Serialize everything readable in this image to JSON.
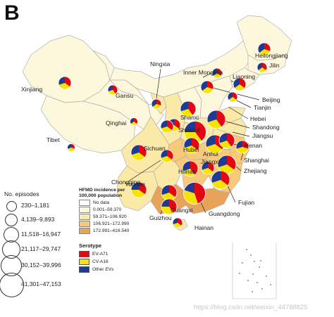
{
  "panel_label": "B",
  "colors": {
    "nodata": "#ffffff",
    "c1": "#fdf7dc",
    "c2": "#fbe9a8",
    "c3": "#f7c979",
    "c4": "#e8a35a",
    "ev71": "#e30613",
    "cva16": "#f6e400",
    "other": "#1f3a93"
  },
  "provinces": [
    {
      "name": "Xinjiang",
      "cls": "c1"
    },
    {
      "name": "Tibet",
      "cls": "c1"
    },
    {
      "name": "Qinghai",
      "cls": "c1"
    },
    {
      "name": "Gansu",
      "cls": "c1"
    },
    {
      "name": "Inner Mongolia",
      "cls": "c1"
    },
    {
      "name": "Heilongjiang",
      "cls": "c1"
    },
    {
      "name": "Jilin",
      "cls": "c1"
    },
    {
      "name": "Liaoning",
      "cls": "c1"
    },
    {
      "name": "Ningxia",
      "cls": "c2"
    },
    {
      "name": "Shaanxi",
      "cls": "c2"
    },
    {
      "name": "Shanxi",
      "cls": "c1"
    },
    {
      "name": "Hebei",
      "cls": "c1"
    },
    {
      "name": "Shandong",
      "cls": "c2"
    },
    {
      "name": "Henan",
      "cls": "c2"
    },
    {
      "name": "Sichuan",
      "cls": "c2"
    },
    {
      "name": "Chongqing",
      "cls": "c3"
    },
    {
      "name": "Hubei",
      "cls": "c3"
    },
    {
      "name": "Anhui",
      "cls": "c2"
    },
    {
      "name": "Jiangsu",
      "cls": "c2"
    },
    {
      "name": "Yunnan",
      "cls": "c2"
    },
    {
      "name": "Guizhou",
      "cls": "c2"
    },
    {
      "name": "Hunan",
      "cls": "c3"
    },
    {
      "name": "Jiangxi",
      "cls": "c3"
    },
    {
      "name": "Zhejiang",
      "cls": "c3"
    },
    {
      "name": "Fujian",
      "cls": "c3"
    },
    {
      "name": "Guangxi",
      "cls": "c4"
    },
    {
      "name": "Guangdong",
      "cls": "c4"
    },
    {
      "name": "Hainan",
      "cls": "c2"
    }
  ],
  "labels": [
    {
      "text": "Xinjiang"
    },
    {
      "text": "Gansu"
    },
    {
      "text": "Ningxia"
    },
    {
      "text": "Inner Mongolia"
    },
    {
      "text": "Heilongjiang"
    },
    {
      "text": "Jilin"
    },
    {
      "text": "Liaoning"
    },
    {
      "text": "Beijing"
    },
    {
      "text": "Tianjin"
    },
    {
      "text": "Hebei"
    },
    {
      "text": "Shandong"
    },
    {
      "text": "Jiangsu"
    },
    {
      "text": "Henan"
    },
    {
      "text": "Shanghai"
    },
    {
      "text": "Zhejiang"
    },
    {
      "text": "Anhui"
    },
    {
      "text": "Shanxi"
    },
    {
      "text": "Shaanxi"
    },
    {
      "text": "Qinghai"
    },
    {
      "text": "Tibet"
    },
    {
      "text": "Sichuan"
    },
    {
      "text": "Hubei"
    },
    {
      "text": "Jiangxi"
    },
    {
      "text": "Hunan"
    },
    {
      "text": "Chongqing"
    },
    {
      "text": "Yunnan"
    },
    {
      "text": "Guizhou"
    },
    {
      "text": "Guangxi"
    },
    {
      "text": "Guangdong"
    },
    {
      "text": "Fujian"
    },
    {
      "text": "Hainan"
    }
  ],
  "pies": [
    {
      "name": "Xinjiang",
      "size": 2,
      "shares": [
        0.35,
        0.35,
        0.3
      ]
    },
    {
      "name": "Gansu",
      "size": 1,
      "shares": [
        0.4,
        0.3,
        0.3
      ]
    },
    {
      "name": "Qinghai",
      "size": 0,
      "shares": [
        0.35,
        0.3,
        0.35
      ]
    },
    {
      "name": "Tibet",
      "size": 0,
      "shares": [
        0.3,
        0.4,
        0.3
      ]
    },
    {
      "name": "Ningxia",
      "size": 1,
      "shares": [
        0.3,
        0.35,
        0.35
      ]
    },
    {
      "name": "Inner Mongolia",
      "size": 1,
      "shares": [
        0.35,
        0.3,
        0.35
      ]
    },
    {
      "name": "Heilongjiang",
      "size": 2,
      "shares": [
        0.3,
        0.35,
        0.35
      ]
    },
    {
      "name": "Jilin",
      "size": 1,
      "shares": [
        0.35,
        0.3,
        0.35
      ]
    },
    {
      "name": "Liaoning",
      "size": 2,
      "shares": [
        0.35,
        0.3,
        0.35
      ]
    },
    {
      "name": "Beijing",
      "size": 2,
      "shares": [
        0.3,
        0.35,
        0.35
      ]
    },
    {
      "name": "Tianjin",
      "size": 1,
      "shares": [
        0.35,
        0.3,
        0.35
      ]
    },
    {
      "name": "Hebei",
      "size": 3,
      "shares": [
        0.4,
        0.3,
        0.3
      ]
    },
    {
      "name": "Shanxi",
      "size": 2,
      "shares": [
        0.35,
        0.35,
        0.3
      ]
    },
    {
      "name": "Shandong",
      "size": 4,
      "shares": [
        0.4,
        0.3,
        0.3
      ]
    },
    {
      "name": "Henan",
      "size": 5,
      "shares": [
        0.4,
        0.35,
        0.25
      ]
    },
    {
      "name": "Jiangsu",
      "size": 4,
      "shares": [
        0.35,
        0.35,
        0.3
      ]
    },
    {
      "name": "Shaanxi",
      "size": 2,
      "shares": [
        0.35,
        0.35,
        0.3
      ]
    },
    {
      "name": "Anhui",
      "size": 3,
      "shares": [
        0.4,
        0.3,
        0.3
      ]
    },
    {
      "name": "Shanghai",
      "size": 2,
      "shares": [
        0.3,
        0.4,
        0.3
      ]
    },
    {
      "name": "Hubei",
      "size": 3,
      "shares": [
        0.35,
        0.35,
        0.3
      ]
    },
    {
      "name": "Sichuan",
      "size": 3,
      "shares": [
        0.35,
        0.35,
        0.3
      ]
    },
    {
      "name": "Chongqing",
      "size": 2,
      "shares": [
        0.35,
        0.35,
        0.3
      ]
    },
    {
      "name": "Zhejiang",
      "size": 4,
      "shares": [
        0.35,
        0.35,
        0.3
      ]
    },
    {
      "name": "Jiangxi",
      "size": 2,
      "shares": [
        0.35,
        0.35,
        0.3
      ]
    },
    {
      "name": "Hunan",
      "size": 3,
      "shares": [
        0.4,
        0.3,
        0.3
      ]
    },
    {
      "name": "Yunnan",
      "size": 3,
      "shares": [
        0.35,
        0.4,
        0.25
      ]
    },
    {
      "name": "Guizhou",
      "size": 3,
      "shares": [
        0.35,
        0.35,
        0.3
      ]
    },
    {
      "name": "Fujian",
      "size": 4,
      "shares": [
        0.35,
        0.35,
        0.3
      ]
    },
    {
      "name": "Guangxi",
      "size": 3,
      "shares": [
        0.4,
        0.35,
        0.25
      ]
    },
    {
      "name": "Guangdong",
      "size": 5,
      "shares": [
        0.45,
        0.35,
        0.2
      ]
    },
    {
      "name": "Hainan",
      "size": 1,
      "shares": [
        0.35,
        0.35,
        0.3
      ]
    }
  ],
  "episodes_legend": {
    "title": "No. episodes",
    "ranges": [
      "230–1,181",
      "4,139–9,893",
      "11,518–16,947",
      "21,117–29,747",
      "30,152–39,996",
      "41,301–47,153"
    ]
  },
  "incidence_legend": {
    "title": "HFMD incidence per 100,000 population",
    "classes": [
      {
        "label": "No data",
        "color": "#ffffff"
      },
      {
        "label": "0.001–59.370",
        "color": "#fdf7dc"
      },
      {
        "label": "59.371–106.920",
        "color": "#fbe9a8"
      },
      {
        "label": "106.921–172.990",
        "color": "#f7c979"
      },
      {
        "label": "172.991–416.540",
        "color": "#e8a35a"
      }
    ]
  },
  "serotype_legend": {
    "title": "Serotype",
    "items": [
      {
        "label": "EV-A71",
        "color": "#e30613"
      },
      {
        "label": "CV-A16",
        "color": "#f6e400"
      },
      {
        "label": "Other EVs",
        "color": "#1f3a93"
      }
    ]
  },
  "watermark": "https://blog.csdn.net/weixin_44788825"
}
